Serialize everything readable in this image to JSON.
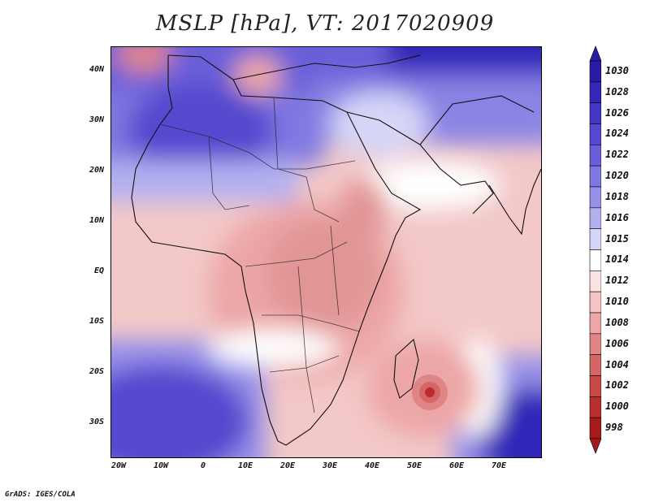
{
  "title": "MSLP [hPa], VT: 2017020909",
  "credit": "GrADS: IGES/COLA",
  "lat_labels": [
    "40N",
    "30N",
    "20N",
    "10N",
    "EQ",
    "10S",
    "20S",
    "30S"
  ],
  "lon_labels": [
    "20W",
    "10W",
    "0",
    "10E",
    "20E",
    "30E",
    "40E",
    "50E",
    "60E",
    "70E"
  ],
  "colorbar": {
    "levels": [
      "1030",
      "1028",
      "1026",
      "1024",
      "1022",
      "1020",
      "1018",
      "1016",
      "1015",
      "1014",
      "1012",
      "1010",
      "1008",
      "1006",
      "1004",
      "1002",
      "1000",
      "998"
    ],
    "colors": [
      "#2a1aa6",
      "#3326b8",
      "#4436c4",
      "#5548cf",
      "#6a5fd9",
      "#7f78e0",
      "#9690e8",
      "#b3b0f0",
      "#d6d6f8",
      "#ffffff",
      "#fbe3e3",
      "#f5c4c4",
      "#eca6a6",
      "#e08585",
      "#d46666",
      "#c84848",
      "#b82d2d",
      "#a51a1a"
    ]
  },
  "map": {
    "variable": "MSLP",
    "units": "hPa",
    "valid_time": "2017020909",
    "features": [
      "High pressure over Mediterranean and North Africa",
      "High pressure over South Atlantic",
      "Low pressure over central Africa",
      "Tropical low east of Madagascar"
    ]
  }
}
